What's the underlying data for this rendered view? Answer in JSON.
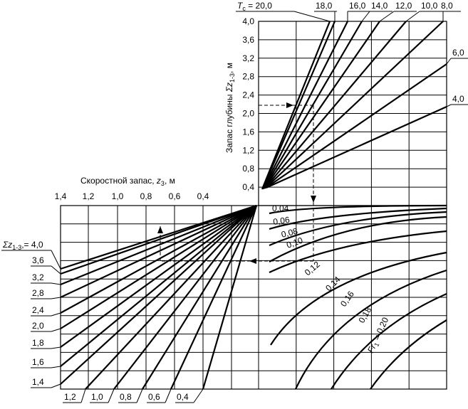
{
  "axes": {
    "x_label": {
      "main": "Скоростной запас, ",
      "var": "z",
      "sub": "3",
      "unit": ", м"
    },
    "y_label": {
      "main": "Запас глубины ",
      "var": "Σz",
      "sub": "1-3",
      "unit": ", м"
    },
    "x_ticks": [
      "1,4",
      "1,2",
      "1,0",
      "0,8",
      "0,6",
      "0,4"
    ],
    "y_ticks": [
      "4,0",
      "3,6",
      "3,2",
      "2,8",
      "2,4",
      "2,0",
      "1,6",
      "1,2",
      "0,8",
      "0,4"
    ]
  },
  "tc_curves": {
    "var": "T",
    "sub": "c",
    "eq": " = ",
    "labels": [
      "20,0",
      "18,0",
      "16,0",
      "14,0",
      "12,0",
      "10,0",
      "8,0",
      "6,0",
      "4,0"
    ]
  },
  "fr_curves": {
    "var": "Fr",
    "sub": "1",
    "eq": " = ",
    "labels": [
      "0,04",
      "0,06",
      "0,08",
      "0,10",
      "0,12",
      "0,14",
      "0,16",
      "0,18",
      "0,20"
    ]
  },
  "sum_z_curves": {
    "var": "Σz",
    "sub": "1-3",
    "eq": ",= ",
    "labels": [
      "4,0",
      "3,6",
      "3,2",
      "2,8",
      "2,4",
      "2,0",
      "1,8",
      "1,6",
      "1,4"
    ]
  },
  "z3_curves": {
    "labels": [
      "1,2",
      "1,0",
      "0,8",
      "0,6",
      "0,4"
    ]
  }
}
